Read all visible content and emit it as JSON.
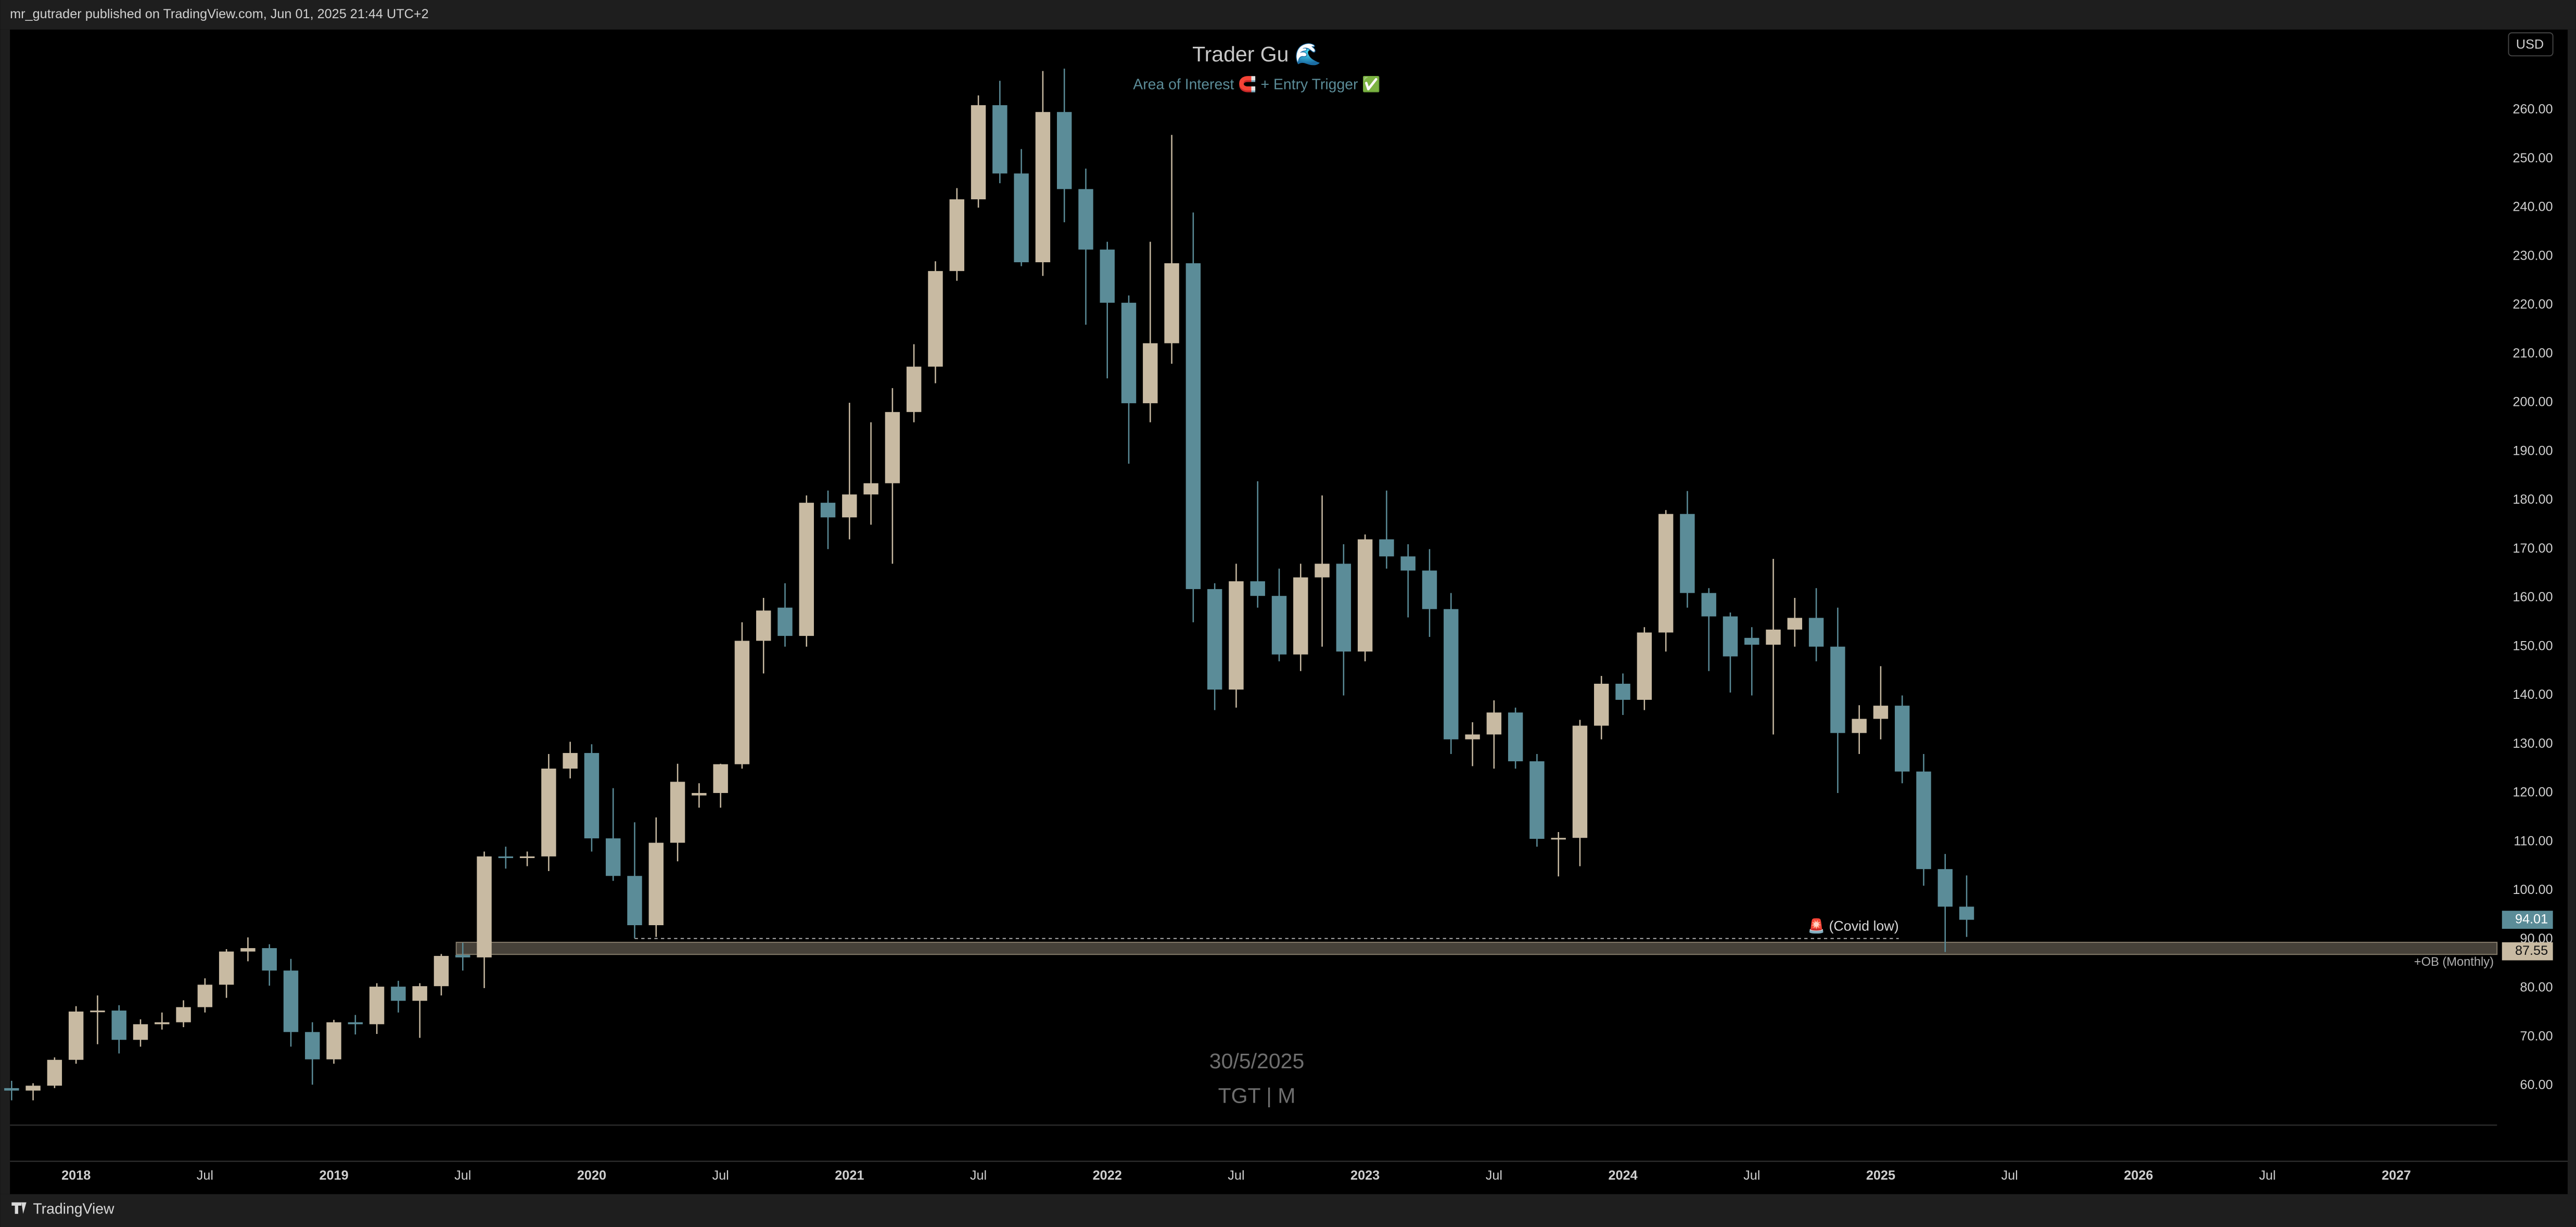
{
  "header": {
    "text": "mr_gutrader published on TradingView.com, Jun 01, 2025 21:44 UTC+2"
  },
  "footer": {
    "brand": "TradingView"
  },
  "currency": "USD",
  "watermark": {
    "date": "30/5/2025",
    "symbol": "TGT | M"
  },
  "chart_data": {
    "type": "candlestick",
    "title": "Trader Gu 🌊",
    "subtitle": "Area of Interest 🧲 + Entry Trigger ✅",
    "up_color": "#c8baa2",
    "down_color": "#5b8c98",
    "x": [
      "2017-10",
      "2017-11",
      "2017-12",
      "2018-01",
      "2018-02",
      "2018-03",
      "2018-04",
      "2018-05",
      "2018-06",
      "2018-07",
      "2018-08",
      "2018-09",
      "2018-10",
      "2018-11",
      "2018-12",
      "2019-01",
      "2019-02",
      "2019-03",
      "2019-04",
      "2019-05",
      "2019-06",
      "2019-07",
      "2019-08",
      "2019-09",
      "2019-10",
      "2019-11",
      "2019-12",
      "2020-01",
      "2020-02",
      "2020-03",
      "2020-04",
      "2020-05",
      "2020-06",
      "2020-07",
      "2020-08",
      "2020-09",
      "2020-10",
      "2020-11",
      "2020-12",
      "2021-01",
      "2021-02",
      "2021-03",
      "2021-04",
      "2021-05",
      "2021-06",
      "2021-07",
      "2021-08",
      "2021-09",
      "2021-10",
      "2021-11",
      "2021-12",
      "2022-01",
      "2022-02",
      "2022-03",
      "2022-04",
      "2022-05",
      "2022-06",
      "2022-07",
      "2022-08",
      "2022-09",
      "2022-10",
      "2022-11",
      "2022-12",
      "2023-01",
      "2023-02",
      "2023-03",
      "2023-04",
      "2023-05",
      "2023-06",
      "2023-07",
      "2023-08",
      "2023-09",
      "2023-10",
      "2023-11",
      "2023-12",
      "2024-01",
      "2024-02",
      "2024-03",
      "2024-04",
      "2024-05",
      "2024-06",
      "2024-07",
      "2024-08",
      "2024-09",
      "2024-10",
      "2024-11",
      "2024-12",
      "2025-01",
      "2025-02",
      "2025-03",
      "2025-04",
      "2025-05"
    ],
    "open": [
      59.5,
      59,
      60,
      65.3,
      75.2,
      75.4,
      69.4,
      72.6,
      73,
      76.1,
      80.7,
      87.5,
      88.2,
      83.6,
      71,
      65.4,
      73,
      72.6,
      80.3,
      77.4,
      80.4,
      86.8,
      86.3,
      107,
      106.9,
      107,
      125,
      128.2,
      110.7,
      103,
      92.9,
      109.8,
      119.5,
      120,
      125.9,
      151.2,
      158,
      152.2,
      179.5,
      176.5,
      181.2,
      183.5,
      198.1,
      207.4,
      227,
      241.7,
      261,
      247,
      228.8,
      259.6,
      243.8,
      231.4,
      220.5,
      199.9,
      212.2,
      228.6,
      161.8,
      141.2,
      163.4,
      160.4,
      148.4,
      164.2,
      167,
      149,
      172,
      168.5,
      165.6,
      157.7,
      131,
      132,
      136.5,
      126.5,
      110.6,
      110.8,
      133.8,
      142.4,
      139.1,
      152.9,
      177.2,
      161,
      156.2,
      151.8,
      150.4,
      153.5,
      155.9,
      150,
      132.3,
      135.2,
      137.9,
      124.4,
      104.4,
      96.7
    ],
    "high": [
      61,
      60.5,
      65.8,
      76.3,
      78.5,
      76.5,
      73.6,
      75,
      77.5,
      82,
      88,
      90.4,
      89,
      86,
      73,
      73.5,
      74.5,
      81,
      81.5,
      81,
      87,
      89.3,
      108,
      109,
      108,
      128,
      130.5,
      130,
      121,
      114,
      115,
      126,
      122,
      126,
      155,
      160,
      163,
      181,
      182,
      200,
      196,
      203,
      212,
      229,
      244,
      263,
      266,
      252,
      268,
      268.5,
      248,
      233,
      222,
      233,
      254.9,
      239,
      163,
      167,
      183.9,
      166,
      167,
      181,
      171,
      173,
      182,
      171,
      170,
      161,
      134.5,
      139,
      137.5,
      128,
      112,
      135,
      144,
      144.5,
      154,
      178,
      181.9,
      162,
      157,
      154,
      168,
      160,
      162,
      158,
      138,
      146,
      140,
      128,
      107.5,
      103.1
    ],
    "low": [
      57,
      57,
      59.5,
      64.5,
      68.5,
      66.6,
      68,
      71.5,
      72,
      75,
      78,
      85.5,
      80.5,
      68,
      60.2,
      64.5,
      70.5,
      70.6,
      75,
      69.8,
      78.5,
      83.6,
      80,
      104.5,
      105,
      104,
      123,
      108,
      102,
      90.2,
      90.5,
      106,
      117,
      117,
      125,
      144.5,
      150,
      150,
      170,
      172,
      175,
      167,
      196,
      204,
      225,
      240,
      245,
      228,
      226,
      237,
      216,
      205,
      187.5,
      196,
      208,
      155,
      137,
      137.5,
      158,
      147,
      145,
      150,
      140,
      147,
      166,
      156,
      152,
      128,
      125.5,
      125,
      125,
      109,
      102.9,
      105,
      131,
      136,
      137,
      149,
      158,
      145,
      140.6,
      140,
      132,
      150,
      147,
      120,
      128,
      131,
      122,
      101,
      87.4,
      90.5
    ],
    "close": [
      59,
      60,
      65.3,
      75.2,
      75.4,
      69.4,
      72.6,
      73,
      76.1,
      80.7,
      87.5,
      88.2,
      83.6,
      71,
      65.4,
      73,
      72.6,
      80.3,
      77.4,
      80.4,
      86.6,
      86.3,
      107,
      106.9,
      107,
      125,
      128.2,
      110.7,
      103,
      92.9,
      109.8,
      122.3,
      120,
      125.9,
      151.2,
      157.4,
      152.2,
      179.5,
      176.5,
      181.2,
      183.5,
      198.1,
      207.4,
      227,
      241.7,
      261,
      247,
      228.8,
      259.6,
      243.8,
      231.4,
      220.5,
      199.9,
      212.2,
      228.6,
      161.8,
      141.2,
      163.4,
      160.4,
      148.4,
      164.2,
      167,
      149,
      172,
      168.5,
      165.6,
      157.7,
      131,
      132,
      136.5,
      126.5,
      110.6,
      110.8,
      133.8,
      142.4,
      139.1,
      152.9,
      177.2,
      161,
      156.2,
      148,
      150.4,
      153.5,
      155.9,
      150,
      132.3,
      135.2,
      137.9,
      124.4,
      104.4,
      96.7,
      94.01
    ],
    "xlim": [
      "2017-10",
      "2027-05"
    ],
    "xticks": [
      {
        "value": "2018-01",
        "label": "2018"
      },
      {
        "value": "2018-07",
        "label": "Jul"
      },
      {
        "value": "2019-01",
        "label": "2019"
      },
      {
        "value": "2019-07",
        "label": "Jul"
      },
      {
        "value": "2020-01",
        "label": "2020"
      },
      {
        "value": "2020-07",
        "label": "Jul"
      },
      {
        "value": "2021-01",
        "label": "2021"
      },
      {
        "value": "2021-07",
        "label": "Jul"
      },
      {
        "value": "2022-01",
        "label": "2022"
      },
      {
        "value": "2022-07",
        "label": "Jul"
      },
      {
        "value": "2023-01",
        "label": "2023"
      },
      {
        "value": "2023-07",
        "label": "Jul"
      },
      {
        "value": "2024-01",
        "label": "2024"
      },
      {
        "value": "2024-07",
        "label": "Jul"
      },
      {
        "value": "2025-01",
        "label": "2025"
      },
      {
        "value": "2025-07",
        "label": "Jul"
      },
      {
        "value": "2026-01",
        "label": "2026"
      },
      {
        "value": "2026-07",
        "label": "Jul"
      },
      {
        "value": "2027-01",
        "label": "2027"
      }
    ],
    "ylim": [
      44.5,
      276.5
    ],
    "yticks": [
      {
        "value": 60,
        "label": "60.00"
      },
      {
        "value": 70,
        "label": "70.00"
      },
      {
        "value": 80,
        "label": "80.00"
      },
      {
        "value": 90,
        "label": "90.00"
      },
      {
        "value": 100,
        "label": "100.00"
      },
      {
        "value": 110,
        "label": "110.00"
      },
      {
        "value": 120,
        "label": "120.00"
      },
      {
        "value": 130,
        "label": "130.00"
      },
      {
        "value": 140,
        "label": "140.00"
      },
      {
        "value": 150,
        "label": "150.00"
      },
      {
        "value": 160,
        "label": "160.00"
      },
      {
        "value": 170,
        "label": "170.00"
      },
      {
        "value": 180,
        "label": "180.00"
      },
      {
        "value": 190,
        "label": "190.00"
      },
      {
        "value": 200,
        "label": "200.00"
      },
      {
        "value": 210,
        "label": "210.00"
      },
      {
        "value": 220,
        "label": "220.00"
      },
      {
        "value": 230,
        "label": "230.00"
      },
      {
        "value": 240,
        "label": "240.00"
      },
      {
        "value": 250,
        "label": "250.00"
      },
      {
        "value": 260,
        "label": "260.00"
      }
    ],
    "zone": {
      "label": "+OB (Monthly)",
      "value": 87.55,
      "value_label": "87.55",
      "low": 86.9,
      "high": 89.4,
      "start": "2019-07",
      "color": "#c8baa2"
    },
    "last_price": {
      "value": 94.01,
      "label": "94.01",
      "color": "#5b8c98"
    },
    "annotation": {
      "text": "🚨 (Covid low)",
      "value": 90.17,
      "start": "2020-03",
      "end": "2025-01"
    }
  }
}
